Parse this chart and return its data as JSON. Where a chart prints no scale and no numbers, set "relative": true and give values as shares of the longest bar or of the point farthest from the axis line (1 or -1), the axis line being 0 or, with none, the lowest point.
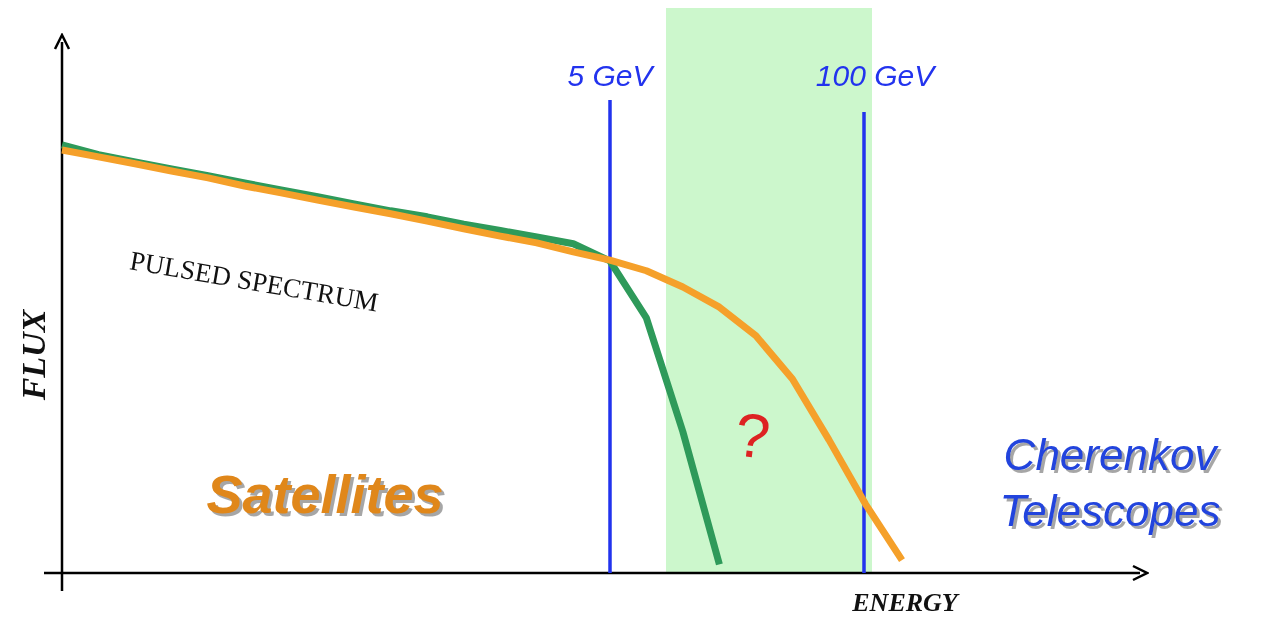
{
  "chart_data": {
    "type": "line",
    "relative": true,
    "xlabel": "ENERGY",
    "ylabel": "FLUX",
    "categories": [
      null,
      null,
      null,
      null,
      null,
      null,
      null,
      null,
      null,
      null,
      null,
      null,
      null,
      null,
      null,
      null,
      null,
      null,
      null,
      null,
      null,
      null,
      null,
      null
    ],
    "marker": "none",
    "line_style": "solid",
    "series": [
      {
        "color": "#f5a02a",
        "values": [
          0.988,
          0.972,
          0.956,
          0.939,
          0.923,
          0.904,
          0.888,
          0.871,
          0.855,
          0.839,
          0.822,
          0.804,
          0.787,
          0.771,
          0.75,
          0.731,
          0.706,
          0.668,
          0.621,
          0.554,
          0.453,
          0.311,
          0.161,
          0.03
        ]
      },
      {
        "color": "#2e9a5a",
        "values": [
          1,
          0.977,
          0.96,
          0.944,
          0.928,
          0.911,
          0.895,
          0.879,
          0.862,
          0.846,
          0.832,
          0.815,
          0.8,
          0.785,
          0.769,
          0.729,
          0.596,
          0.33,
          0.02,
          null,
          null,
          null,
          null,
          null
        ]
      }
    ],
    "annotations": [
      "PULSED SPECTRUM",
      "?",
      "Satellites",
      "Cherenkov Telescopes",
      "5 GeV",
      "100 GeV"
    ]
  }
}
